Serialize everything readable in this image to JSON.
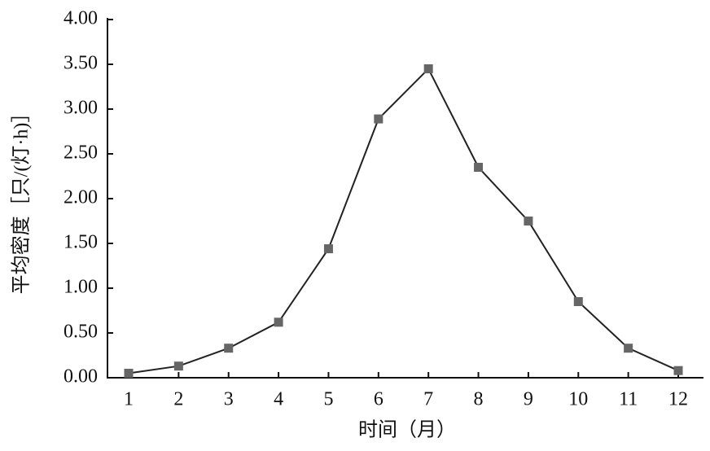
{
  "chart_data": {
    "type": "line",
    "x_label": "时间（月）",
    "y_label": "平均密度［只/(灯·h)］",
    "categories": [
      "1",
      "2",
      "3",
      "4",
      "5",
      "6",
      "7",
      "8",
      "9",
      "10",
      "11",
      "12"
    ],
    "series": [
      {
        "color": "#222222",
        "marker_color": "#666666",
        "values": [
          0.05,
          0.13,
          0.33,
          0.62,
          1.44,
          2.89,
          3.45,
          2.35,
          1.75,
          0.85,
          0.33,
          0.08
        ]
      }
    ],
    "ylim": [
      0,
      4
    ],
    "yticks": [
      {
        "value": 0,
        "label": "0.00"
      },
      {
        "value": 0.5,
        "label": "0.50"
      },
      {
        "value": 1,
        "label": "1.00"
      },
      {
        "value": 1.5,
        "label": "1.50"
      },
      {
        "value": 2,
        "label": "2.00"
      },
      {
        "value": 2.5,
        "label": "2.50"
      },
      {
        "value": 3,
        "label": "3.00"
      },
      {
        "value": 3.5,
        "label": "3.50"
      },
      {
        "value": 4,
        "label": "4.00"
      }
    ],
    "grid": false
  }
}
